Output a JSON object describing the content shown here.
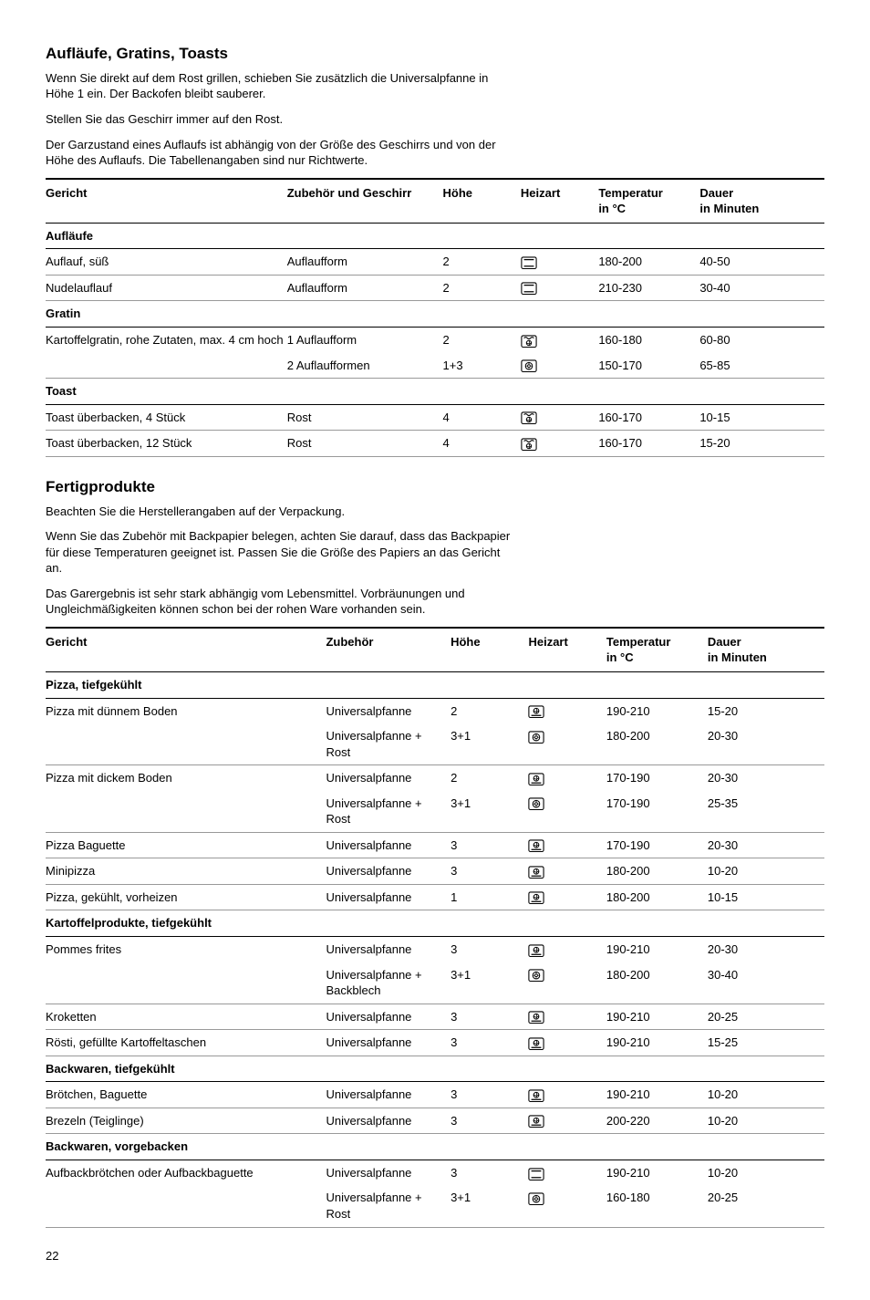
{
  "page_number": "22",
  "section1": {
    "title": "Aufläufe, Gratins, Toasts",
    "paras": [
      "Wenn Sie direkt auf dem Rost grillen, schieben Sie zusätzlich die Universalpfanne in Höhe 1 ein. Der Backofen bleibt sauberer.",
      "Stellen Sie das Geschirr immer auf den Rost.",
      "Der Garzustand eines Auflaufs ist abhängig von der Größe des Geschirrs und von der Höhe des Auflaufs. Die Tabellenangaben sind nur Richtwerte."
    ],
    "columns": [
      "Gericht",
      "Zubehör und Geschirr",
      "Höhe",
      "Heizart",
      "Temperatur in °C",
      "Dauer in Minuten"
    ],
    "col_widths": [
      "31%",
      "20%",
      "10%",
      "10%",
      "13%",
      "16%"
    ],
    "rows": [
      {
        "type": "section",
        "cells": [
          "Aufläufe",
          "",
          "",
          "",
          "",
          ""
        ]
      },
      {
        "type": "data",
        "cells": [
          "Auflauf, süß",
          "Auflaufform",
          "2",
          "topbottom",
          "180-200",
          "40-50"
        ]
      },
      {
        "type": "data",
        "cells": [
          "Nudelauflauf",
          "Auflaufform",
          "2",
          "topbottom",
          "210-230",
          "30-40"
        ]
      },
      {
        "type": "section",
        "cells": [
          "Gratin",
          "",
          "",
          "",
          "",
          ""
        ]
      },
      {
        "type": "data",
        "noborder": true,
        "cells": [
          "Kartoffelgratin, rohe Zutaten, max. 4 cm hoch",
          "1 Auflaufform",
          "2",
          "grillfan",
          "160-180",
          "60-80"
        ]
      },
      {
        "type": "data",
        "cells": [
          "",
          "2 Auflaufformen",
          "1+3",
          "hotair",
          "150-170",
          "65-85"
        ]
      },
      {
        "type": "section",
        "cells": [
          "Toast",
          "",
          "",
          "",
          "",
          ""
        ]
      },
      {
        "type": "data",
        "cells": [
          "Toast überbacken, 4 Stück",
          "Rost",
          "4",
          "grillfan",
          "160-170",
          "10-15"
        ]
      },
      {
        "type": "data",
        "cells": [
          "Toast überbacken, 12 Stück",
          "Rost",
          "4",
          "grillfan",
          "160-170",
          "15-20"
        ]
      }
    ]
  },
  "section2": {
    "title": "Fertigprodukte",
    "paras": [
      "Beachten Sie die Herstellerangaben auf der Verpackung.",
      "Wenn Sie das Zubehör mit Backpapier belegen, achten Sie darauf, dass das Backpapier für diese Temperaturen geeignet ist. Passen Sie die Größe des Papiers an das Gericht an.",
      "Das Garergebnis ist sehr stark abhängig vom Lebensmittel. Vorbräunungen und Ungleichmäßigkeiten können schon bei der rohen Ware vorhanden sein."
    ],
    "columns": [
      "Gericht",
      "Zubehör",
      "Höhe",
      "Heizart",
      "Temperatur in °C",
      "Dauer in Minuten"
    ],
    "col_widths": [
      "36%",
      "16%",
      "10%",
      "10%",
      "13%",
      "15%"
    ],
    "rows": [
      {
        "type": "section",
        "cells": [
          "Pizza, tiefgekühlt",
          "",
          "",
          "",
          "",
          ""
        ]
      },
      {
        "type": "data",
        "noborder": true,
        "cells": [
          "Pizza mit dünnem Boden",
          "Universalpfanne",
          "2",
          "pizza",
          "190-210",
          "15-20"
        ]
      },
      {
        "type": "data",
        "cells": [
          "",
          "Universalpfanne + Rost",
          "3+1",
          "hotair",
          "180-200",
          "20-30"
        ]
      },
      {
        "type": "data",
        "noborder": true,
        "cells": [
          "Pizza mit dickem Boden",
          "Universalpfanne",
          "2",
          "pizza",
          "170-190",
          "20-30"
        ]
      },
      {
        "type": "data",
        "cells": [
          "",
          "Universalpfanne + Rost",
          "3+1",
          "hotair",
          "170-190",
          "25-35"
        ]
      },
      {
        "type": "data",
        "cells": [
          "Pizza Baguette",
          "Universalpfanne",
          "3",
          "pizza",
          "170-190",
          "20-30"
        ]
      },
      {
        "type": "data",
        "cells": [
          "Minipizza",
          "Universalpfanne",
          "3",
          "pizza",
          "180-200",
          "10-20"
        ]
      },
      {
        "type": "data",
        "cells": [
          "Pizza, gekühlt, vorheizen",
          "Universalpfanne",
          "1",
          "pizza",
          "180-200",
          "10-15"
        ]
      },
      {
        "type": "section",
        "cells": [
          "Kartoffelprodukte, tiefgekühlt",
          "",
          "",
          "",
          "",
          ""
        ]
      },
      {
        "type": "data",
        "noborder": true,
        "cells": [
          "Pommes frites",
          "Universalpfanne",
          "3",
          "pizza",
          "190-210",
          "20-30"
        ]
      },
      {
        "type": "data",
        "cells": [
          "",
          "Universalpfanne + Backblech",
          "3+1",
          "hotair",
          "180-200",
          "30-40"
        ]
      },
      {
        "type": "data",
        "cells": [
          "Kroketten",
          "Universalpfanne",
          "3",
          "pizza",
          "190-210",
          "20-25"
        ]
      },
      {
        "type": "data",
        "cells": [
          "Rösti, gefüllte Kartoffeltaschen",
          "Universalpfanne",
          "3",
          "pizza",
          "190-210",
          "15-25"
        ]
      },
      {
        "type": "section",
        "cells": [
          "Backwaren, tiefgekühlt",
          "",
          "",
          "",
          "",
          ""
        ]
      },
      {
        "type": "data",
        "cells": [
          "Brötchen, Baguette",
          "Universalpfanne",
          "3",
          "pizza",
          "190-210",
          "10-20"
        ]
      },
      {
        "type": "data",
        "cells": [
          "Brezeln (Teiglinge)",
          "Universalpfanne",
          "3",
          "pizza",
          "200-220",
          "10-20"
        ]
      },
      {
        "type": "section",
        "cells": [
          "Backwaren, vorgebacken",
          "",
          "",
          "",
          "",
          ""
        ]
      },
      {
        "type": "data",
        "noborder": true,
        "cells": [
          "Aufbackbrötchen oder Aufbackbaguette",
          "Universalpfanne",
          "3",
          "topbottom",
          "190-210",
          "10-20"
        ]
      },
      {
        "type": "data",
        "cells": [
          "",
          "Universalpfanne + Rost",
          "3+1",
          "hotair",
          "160-180",
          "20-25"
        ]
      }
    ]
  },
  "icons": {
    "topbottom": "<svg viewBox='0 0 20 16'><rect x='1' y='1' width='18' height='14' rx='2' fill='none' stroke='#000' stroke-width='1.2'/><line x1='4' y1='4' x2='16' y2='4' stroke='#000' stroke-width='1.4'/><line x1='4' y1='12' x2='16' y2='12' stroke='#000' stroke-width='1.4'/></svg>",
    "grillfan": "<svg viewBox='0 0 20 16'><rect x='1' y='1' width='18' height='14' rx='2' fill='none' stroke='#000' stroke-width='1.2'/><path d='M4 4 Q6 2 8 4 Q10 6 12 4 Q14 2 16 4' fill='none' stroke='#000' stroke-width='1.2'/><circle cx='10' cy='10' r='3' fill='none' stroke='#000' stroke-width='1.1'/><path d='M10 7 L11 10 L10 13 M7 10 L10 11 L13 10' stroke='#000' stroke-width='0.9' fill='none'/></svg>",
    "hotair": "<svg viewBox='0 0 20 16'><rect x='1' y='1' width='18' height='14' rx='2' fill='none' stroke='#000' stroke-width='1.2'/><circle cx='10' cy='8' r='4.2' fill='none' stroke='#000' stroke-width='1.1'/><circle cx='10' cy='8' r='1.6' fill='none' stroke='#000' stroke-width='1'/><path d='M10 3.8 L10 5.5 M10 10.5 L10 12.2 M5.8 8 L7.5 8 M12.5 8 L14.2 8' stroke='#000' stroke-width='1'/></svg>",
    "pizza": "<svg viewBox='0 0 20 16'><rect x='1' y='1' width='18' height='14' rx='2' fill='none' stroke='#000' stroke-width='1.2'/><circle cx='10' cy='7' r='3.2' fill='none' stroke='#000' stroke-width='1.1'/><path d='M10 3.8 L11 7 L10 10.2 M6.8 7 L10 8 L13.2 7' stroke='#000' stroke-width='0.9' fill='none'/><line x1='4' y1='12.5' x2='16' y2='12.5' stroke='#000' stroke-width='1.4'/></svg>"
  }
}
